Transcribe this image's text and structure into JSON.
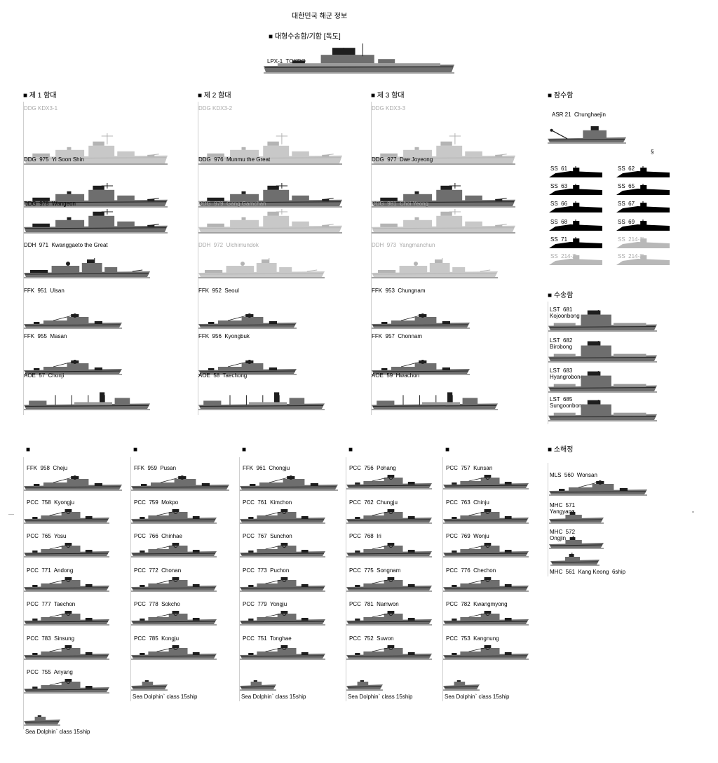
{
  "page_title": "대한민국 해군 정보",
  "flagship": {
    "heading": "대형수송함/기함 [독도]",
    "label": "LPX-1  TOKDO"
  },
  "fleets": [
    {
      "heading": "제 1 함대",
      "ships": [
        {
          "label": "DDG KDX3-1",
          "kind": "kdx3",
          "ghost": true
        },
        {
          "label": "DDG  975  Yi Soon Shin",
          "kind": "kdx2",
          "ghost": false
        },
        {
          "label": "DDG  978  Wangeon",
          "kind": "kdx2",
          "ghost": false
        },
        {
          "label": "DDH  971  Kwanggaeto the Great",
          "kind": "kdx1",
          "ghost": false
        },
        {
          "label": "FFK  951  Ulsan",
          "kind": "ffk",
          "ghost": false
        },
        {
          "label": "FFK  955  Masan",
          "kind": "ffk",
          "ghost": false
        },
        {
          "label": "AOE  57  Chonji",
          "kind": "aoe",
          "ghost": false
        }
      ]
    },
    {
      "heading": "제 2 함대",
      "ships": [
        {
          "label": "DDG KDX3-2",
          "kind": "kdx3",
          "ghost": true
        },
        {
          "label": "DDG  976  Munmu the Great",
          "kind": "kdx2",
          "ghost": false
        },
        {
          "label": "DDG  979  Gang Gamchan",
          "kind": "kdx2",
          "ghost": true
        },
        {
          "label": "DDH  972  Ulchimundok",
          "kind": "kdx1",
          "ghost": true
        },
        {
          "label": "FFK  952  Seoul",
          "kind": "ffk",
          "ghost": false
        },
        {
          "label": "FFK  956  Kyongbuk",
          "kind": "ffk",
          "ghost": false
        },
        {
          "label": "AOE  58  Taechong",
          "kind": "aoe",
          "ghost": false
        }
      ]
    },
    {
      "heading": "제 3 함대",
      "ships": [
        {
          "label": "DDG KDX3-3",
          "kind": "kdx3",
          "ghost": true
        },
        {
          "label": "DDG  977  Dae Joyeong",
          "kind": "kdx2",
          "ghost": false
        },
        {
          "label": "DDG  981  Choi Yeong",
          "kind": "kdx2",
          "ghost": true
        },
        {
          "label": "DDH  973  Yangmanchun",
          "kind": "kdx1",
          "ghost": true
        },
        {
          "label": "FFK  953  Chungnam",
          "kind": "ffk",
          "ghost": false
        },
        {
          "label": "FFK  957  Chonnam",
          "kind": "ffk",
          "ghost": false
        },
        {
          "label": "AOE  59  Hwachon",
          "kind": "aoe",
          "ghost": false
        }
      ]
    }
  ],
  "submarines": {
    "heading": "잠수함",
    "rescue": "ASR 21  Chunghaejin",
    "marker": "§",
    "boats": [
      {
        "label": "SS  61",
        "ghost": false
      },
      {
        "label": "SS  62",
        "ghost": false
      },
      {
        "label": "SS  63",
        "ghost": false
      },
      {
        "label": "SS  65",
        "ghost": false
      },
      {
        "label": "SS  66",
        "ghost": false
      },
      {
        "label": "SS  67",
        "ghost": false
      },
      {
        "label": "SS  68",
        "ghost": false
      },
      {
        "label": "SS  69",
        "ghost": false
      },
      {
        "label": "SS  71",
        "ghost": false
      },
      {
        "label": "SS  214-1",
        "ghost": true
      },
      {
        "label": "SS  214-2",
        "ghost": true
      },
      {
        "label": "SS  214-3",
        "ghost": true
      }
    ]
  },
  "transports": {
    "heading": "수송함",
    "ships": [
      {
        "label": "LST  681\nKojoonbong"
      },
      {
        "label": "LST  682\nBirobong"
      },
      {
        "label": "LST  683\nHyangrobong"
      },
      {
        "label": "LST  685\nSungoonbong"
      }
    ]
  },
  "minesweepers": {
    "heading": "소해정",
    "ships": [
      {
        "label": "MLS  560  Wonsan",
        "kind": "mls"
      },
      {
        "label": "MHC  571\nYangyang",
        "kind": "mhc"
      },
      {
        "label": "MHC  572\nOngjin",
        "kind": "mhc"
      },
      {
        "label": "MHC  561  Kang Keong  6ship",
        "kind": "mhc2"
      }
    ]
  },
  "lower_groups": [
    {
      "ships": [
        {
          "label": "FFK  958  Cheju",
          "kind": "ffk"
        },
        {
          "label": "PCC  758  Kyongju",
          "kind": "pcc"
        },
        {
          "label": "PCC  765  Yosu",
          "kind": "pcc"
        },
        {
          "label": "PCC  771  Andong",
          "kind": "pcc"
        },
        {
          "label": "PCC  777  Taechon",
          "kind": "pcc"
        },
        {
          "label": "PCC  783  Sinsung",
          "kind": "pcc"
        },
        {
          "label": "PCC  755  Anyang",
          "kind": "pcc"
        }
      ],
      "footer": "Sea Dolphin` class 15ship"
    },
    {
      "ships": [
        {
          "label": "FFK  959  Pusan",
          "kind": "ffk"
        },
        {
          "label": "PCC  759  Mokpo",
          "kind": "pcc"
        },
        {
          "label": "PCC  766  Chinhae",
          "kind": "pcc"
        },
        {
          "label": "PCC  772  Chonan",
          "kind": "pcc"
        },
        {
          "label": "PCC  778  Sokcho",
          "kind": "pcc"
        },
        {
          "label": "PCC  785  Kongju",
          "kind": "pcc"
        }
      ],
      "footer": "Sea Dolphin` class 15ship"
    },
    {
      "ships": [
        {
          "label": "FFK  961  Chongju",
          "kind": "ffk"
        },
        {
          "label": "PCC  761  Kimchon",
          "kind": "pcc"
        },
        {
          "label": "PCC  767  Sunchon",
          "kind": "pcc"
        },
        {
          "label": "PCC  773  Puchon",
          "kind": "pcc"
        },
        {
          "label": "PCC  779  Yongju",
          "kind": "pcc"
        },
        {
          "label": "PCC  751  Tonghae",
          "kind": "pcc"
        }
      ],
      "footer": "Sea Dolphin` class 15ship"
    },
    {
      "ships": [
        {
          "label": "PCC  756  Pohang",
          "kind": "pcc"
        },
        {
          "label": "PCC  762  Chungju",
          "kind": "pcc"
        },
        {
          "label": "PCC  768  Iri",
          "kind": "pcc"
        },
        {
          "label": "PCC  775  Songnam",
          "kind": "pcc"
        },
        {
          "label": "PCC  781  Namwon",
          "kind": "pcc"
        },
        {
          "label": "PCC  752  Suwon",
          "kind": "pcc"
        }
      ],
      "footer": "Sea Dolphin` class 15ship"
    },
    {
      "ships": [
        {
          "label": "PCC  757  Kunsan",
          "kind": "pcc"
        },
        {
          "label": "PCC  763  Chinju",
          "kind": "pcc"
        },
        {
          "label": "PCC  769  Wonju",
          "kind": "pcc"
        },
        {
          "label": "PCC  776  Chechon",
          "kind": "pcc"
        },
        {
          "label": "PCC  782  Kwangmyong",
          "kind": "pcc"
        },
        {
          "label": "PCC  753  Kangnung",
          "kind": "pcc"
        }
      ],
      "footer": "Sea Dolphin` class 15ship"
    }
  ]
}
